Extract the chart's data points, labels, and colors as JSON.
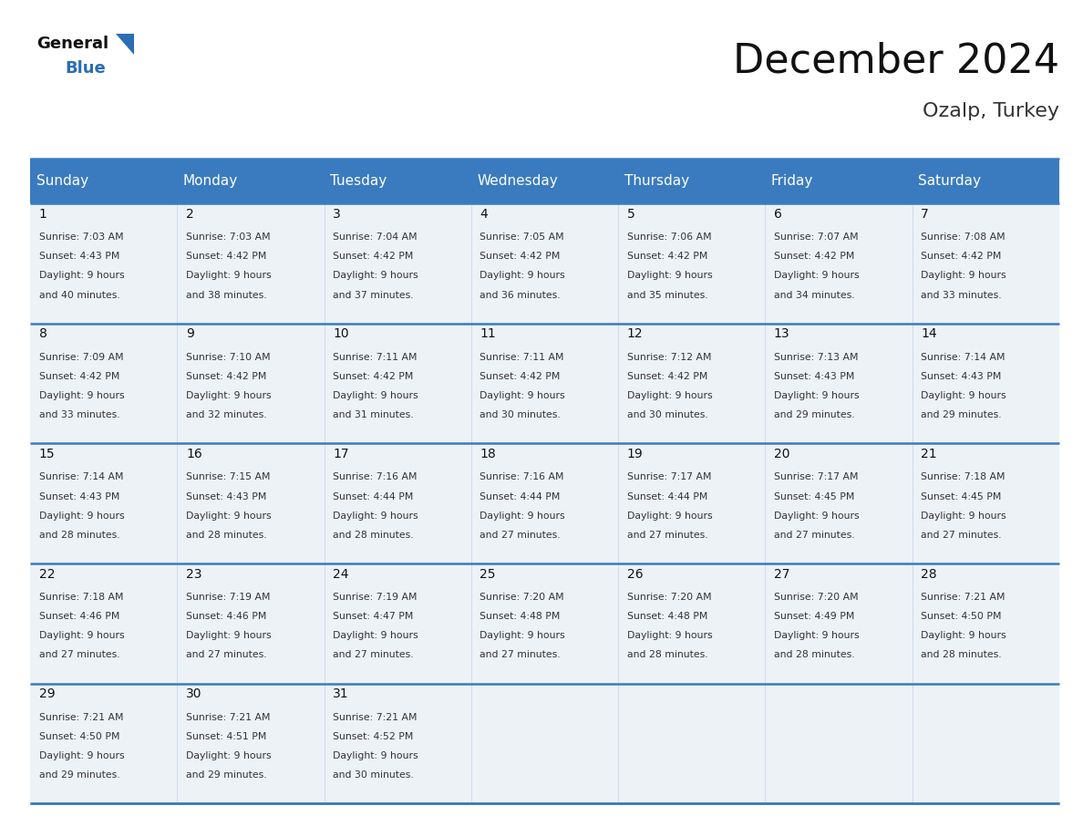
{
  "title": "December 2024",
  "subtitle": "Ozalp, Turkey",
  "header_color": "#3a7bbf",
  "header_text_color": "#ffffff",
  "cell_bg_color": "#edf2f7",
  "day_headers": [
    "Sunday",
    "Monday",
    "Tuesday",
    "Wednesday",
    "Thursday",
    "Friday",
    "Saturday"
  ],
  "days": [
    {
      "day": 1,
      "sunrise": "7:03 AM",
      "sunset": "4:43 PM",
      "dl1": "Daylight: 9 hours",
      "dl2": "and 40 minutes."
    },
    {
      "day": 2,
      "sunrise": "7:03 AM",
      "sunset": "4:42 PM",
      "dl1": "Daylight: 9 hours",
      "dl2": "and 38 minutes."
    },
    {
      "day": 3,
      "sunrise": "7:04 AM",
      "sunset": "4:42 PM",
      "dl1": "Daylight: 9 hours",
      "dl2": "and 37 minutes."
    },
    {
      "day": 4,
      "sunrise": "7:05 AM",
      "sunset": "4:42 PM",
      "dl1": "Daylight: 9 hours",
      "dl2": "and 36 minutes."
    },
    {
      "day": 5,
      "sunrise": "7:06 AM",
      "sunset": "4:42 PM",
      "dl1": "Daylight: 9 hours",
      "dl2": "and 35 minutes."
    },
    {
      "day": 6,
      "sunrise": "7:07 AM",
      "sunset": "4:42 PM",
      "dl1": "Daylight: 9 hours",
      "dl2": "and 34 minutes."
    },
    {
      "day": 7,
      "sunrise": "7:08 AM",
      "sunset": "4:42 PM",
      "dl1": "Daylight: 9 hours",
      "dl2": "and 33 minutes."
    },
    {
      "day": 8,
      "sunrise": "7:09 AM",
      "sunset": "4:42 PM",
      "dl1": "Daylight: 9 hours",
      "dl2": "and 33 minutes."
    },
    {
      "day": 9,
      "sunrise": "7:10 AM",
      "sunset": "4:42 PM",
      "dl1": "Daylight: 9 hours",
      "dl2": "and 32 minutes."
    },
    {
      "day": 10,
      "sunrise": "7:11 AM",
      "sunset": "4:42 PM",
      "dl1": "Daylight: 9 hours",
      "dl2": "and 31 minutes."
    },
    {
      "day": 11,
      "sunrise": "7:11 AM",
      "sunset": "4:42 PM",
      "dl1": "Daylight: 9 hours",
      "dl2": "and 30 minutes."
    },
    {
      "day": 12,
      "sunrise": "7:12 AM",
      "sunset": "4:42 PM",
      "dl1": "Daylight: 9 hours",
      "dl2": "and 30 minutes."
    },
    {
      "day": 13,
      "sunrise": "7:13 AM",
      "sunset": "4:43 PM",
      "dl1": "Daylight: 9 hours",
      "dl2": "and 29 minutes."
    },
    {
      "day": 14,
      "sunrise": "7:14 AM",
      "sunset": "4:43 PM",
      "dl1": "Daylight: 9 hours",
      "dl2": "and 29 minutes."
    },
    {
      "day": 15,
      "sunrise": "7:14 AM",
      "sunset": "4:43 PM",
      "dl1": "Daylight: 9 hours",
      "dl2": "and 28 minutes."
    },
    {
      "day": 16,
      "sunrise": "7:15 AM",
      "sunset": "4:43 PM",
      "dl1": "Daylight: 9 hours",
      "dl2": "and 28 minutes."
    },
    {
      "day": 17,
      "sunrise": "7:16 AM",
      "sunset": "4:44 PM",
      "dl1": "Daylight: 9 hours",
      "dl2": "and 28 minutes."
    },
    {
      "day": 18,
      "sunrise": "7:16 AM",
      "sunset": "4:44 PM",
      "dl1": "Daylight: 9 hours",
      "dl2": "and 27 minutes."
    },
    {
      "day": 19,
      "sunrise": "7:17 AM",
      "sunset": "4:44 PM",
      "dl1": "Daylight: 9 hours",
      "dl2": "and 27 minutes."
    },
    {
      "day": 20,
      "sunrise": "7:17 AM",
      "sunset": "4:45 PM",
      "dl1": "Daylight: 9 hours",
      "dl2": "and 27 minutes."
    },
    {
      "day": 21,
      "sunrise": "7:18 AM",
      "sunset": "4:45 PM",
      "dl1": "Daylight: 9 hours",
      "dl2": "and 27 minutes."
    },
    {
      "day": 22,
      "sunrise": "7:18 AM",
      "sunset": "4:46 PM",
      "dl1": "Daylight: 9 hours",
      "dl2": "and 27 minutes."
    },
    {
      "day": 23,
      "sunrise": "7:19 AM",
      "sunset": "4:46 PM",
      "dl1": "Daylight: 9 hours",
      "dl2": "and 27 minutes."
    },
    {
      "day": 24,
      "sunrise": "7:19 AM",
      "sunset": "4:47 PM",
      "dl1": "Daylight: 9 hours",
      "dl2": "and 27 minutes."
    },
    {
      "day": 25,
      "sunrise": "7:20 AM",
      "sunset": "4:48 PM",
      "dl1": "Daylight: 9 hours",
      "dl2": "and 27 minutes."
    },
    {
      "day": 26,
      "sunrise": "7:20 AM",
      "sunset": "4:48 PM",
      "dl1": "Daylight: 9 hours",
      "dl2": "and 28 minutes."
    },
    {
      "day": 27,
      "sunrise": "7:20 AM",
      "sunset": "4:49 PM",
      "dl1": "Daylight: 9 hours",
      "dl2": "and 28 minutes."
    },
    {
      "day": 28,
      "sunrise": "7:21 AM",
      "sunset": "4:50 PM",
      "dl1": "Daylight: 9 hours",
      "dl2": "and 28 minutes."
    },
    {
      "day": 29,
      "sunrise": "7:21 AM",
      "sunset": "4:50 PM",
      "dl1": "Daylight: 9 hours",
      "dl2": "and 29 minutes."
    },
    {
      "day": 30,
      "sunrise": "7:21 AM",
      "sunset": "4:51 PM",
      "dl1": "Daylight: 9 hours",
      "dl2": "and 29 minutes."
    },
    {
      "day": 31,
      "sunrise": "7:21 AM",
      "sunset": "4:52 PM",
      "dl1": "Daylight: 9 hours",
      "dl2": "and 30 minutes."
    }
  ],
  "weeks": [
    [
      1,
      2,
      3,
      4,
      5,
      6,
      7
    ],
    [
      8,
      9,
      10,
      11,
      12,
      13,
      14
    ],
    [
      15,
      16,
      17,
      18,
      19,
      20,
      21
    ],
    [
      22,
      23,
      24,
      25,
      26,
      27,
      28
    ],
    [
      29,
      30,
      31,
      null,
      null,
      null,
      null
    ]
  ],
  "title_fontsize": 32,
  "subtitle_fontsize": 16,
  "header_fontsize": 11,
  "day_num_fontsize": 10,
  "cell_text_fontsize": 7.8,
  "logo_general_color": "#111111",
  "logo_blue_color": "#2a6db5",
  "logo_triangle_color": "#2a6db5",
  "separator_color": "#3a7bbf",
  "vline_color": "#c8d8e8"
}
